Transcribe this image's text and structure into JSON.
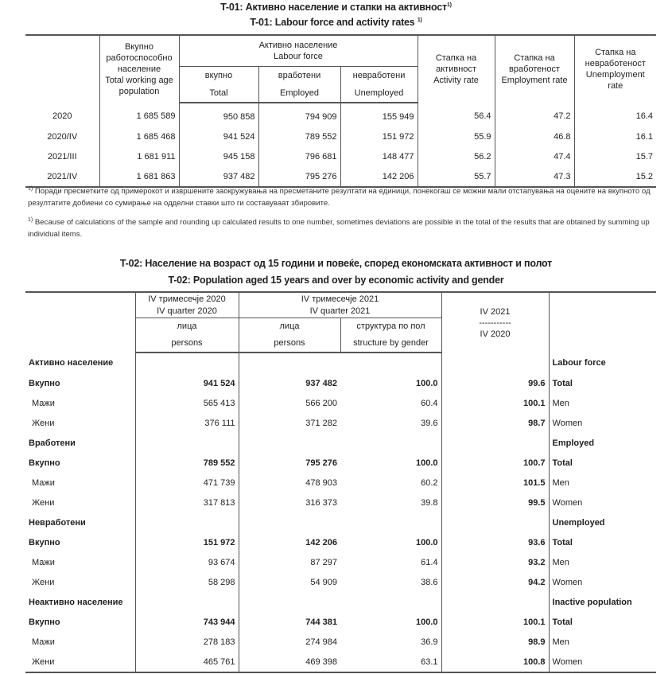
{
  "t01": {
    "title_mk": "T-01: Активно население и стапки на активност",
    "title_en": "T-01: Labour force and activity rates",
    "footnote_mark": "1)",
    "headers": {
      "working_age": [
        "Вкупно",
        "работоспособно",
        "население",
        "Total working age",
        "population"
      ],
      "labour_force": [
        "Активно население",
        "Labour force"
      ],
      "total": [
        "вкупно",
        "Total"
      ],
      "employed": [
        "вработени",
        "Employed"
      ],
      "unemployed": [
        "невработени",
        "Unemployed"
      ],
      "activity_rate": [
        "Стапка на",
        "активност",
        "Activity rate"
      ],
      "employment_rate": [
        "Стапка на",
        "вработеност",
        "Employment rate"
      ],
      "unemployment_rate": [
        "Стапка на",
        "невработеност",
        "Unemployment",
        "rate"
      ]
    },
    "rows": [
      [
        "2020",
        "1 685 589",
        "950 858",
        "794 909",
        "155 949",
        "56.4",
        "47.2",
        "16.4"
      ],
      [
        "2020/IV",
        "1 685 468",
        "941 524",
        "789 552",
        "151 972",
        "55.9",
        "46.8",
        "16.1"
      ],
      [
        "2021/III",
        "1 681 911",
        "945 158",
        "796 681",
        "148 477",
        "56.2",
        "47.4",
        "15.7"
      ],
      [
        "2021/IV",
        "1 681 863",
        "937 482",
        "795 276",
        "142 206",
        "55.7",
        "47.3",
        "15.2"
      ]
    ]
  },
  "notes": {
    "mk": "Поради пресметките од примерокот и извршените заокружувања на пресметаните резултати на единици, понекогаш се можни мали отстапувања на оцените на вкупното од резултатите добиени со сумирање на одделни ставки што ги составуваат збировите.",
    "en": "Because of calculations of the sample and rounding up calculated results to one number, sometimes deviations are possible in the total of the results that are obtained by summing up individual items."
  },
  "t02": {
    "title_mk": "T-02: Население на возраст од 15 години и повеќе, според економската активност и полот",
    "title_en": "T-02: Population aged 15 years and over by economic activity and gender",
    "headers": {
      "q2020": [
        "IV тримесечје 2020",
        "IV quarter 2020"
      ],
      "q2021": [
        "IV тримесечје 2021",
        "IV quarter 2021"
      ],
      "persons": [
        "лица",
        "persons"
      ],
      "structure": [
        "структура по пол",
        "structure by gender"
      ],
      "ratio": [
        "IV 2021",
        "-----------",
        "IV 2020"
      ]
    },
    "rows": [
      {
        "type": "group",
        "mk": "Активно население",
        "en": "Labour force"
      },
      {
        "type": "total",
        "mk": "Вкупно",
        "v": [
          "941 524",
          "937 482",
          "100.0",
          "99.6"
        ],
        "en": "Total"
      },
      {
        "type": "item",
        "mk": "Мажи",
        "v": [
          "565 413",
          "566 200",
          "60.4",
          "100.1"
        ],
        "en": "Men"
      },
      {
        "type": "item",
        "mk": "Жени",
        "v": [
          "376 111",
          "371 282",
          "39.6",
          "98.7"
        ],
        "en": "Women"
      },
      {
        "type": "group",
        "mk": "Вработени",
        "en": "Employed"
      },
      {
        "type": "total",
        "mk": "Вкупно",
        "v": [
          "789 552",
          "795 276",
          "100.0",
          "100.7"
        ],
        "en": "Total"
      },
      {
        "type": "item",
        "mk": "Мажи",
        "v": [
          "471 739",
          "478 903",
          "60.2",
          "101.5"
        ],
        "en": "Men"
      },
      {
        "type": "item",
        "mk": "Жени",
        "v": [
          "317 813",
          "316 373",
          "39.8",
          "99.5"
        ],
        "en": "Women"
      },
      {
        "type": "group",
        "mk": "Невработени",
        "en": "Unemployed"
      },
      {
        "type": "total",
        "mk": "Вкупно",
        "v": [
          "151 972",
          "142 206",
          "100.0",
          "93.6"
        ],
        "en": "Total"
      },
      {
        "type": "item",
        "mk": "Мажи",
        "v": [
          "93 674",
          "87 297",
          "61.4",
          "93.2"
        ],
        "en": "Men"
      },
      {
        "type": "item",
        "mk": "Жени",
        "v": [
          "58 298",
          "54 909",
          "38.6",
          "94.2"
        ],
        "en": "Women"
      },
      {
        "type": "group",
        "mk": "Неактивно население",
        "en": "Inactive population"
      },
      {
        "type": "total",
        "mk": "Вкупно",
        "v": [
          "743 944",
          "744 381",
          "100.0",
          "100.1"
        ],
        "en": "Total"
      },
      {
        "type": "item",
        "mk": "Мажи",
        "v": [
          "278 183",
          "274 984",
          "36.9",
          "98.9"
        ],
        "en": "Men"
      },
      {
        "type": "item",
        "mk": "Жени",
        "v": [
          "465 761",
          "469 398",
          "63.1",
          "100.8"
        ],
        "en": "Women"
      }
    ]
  }
}
